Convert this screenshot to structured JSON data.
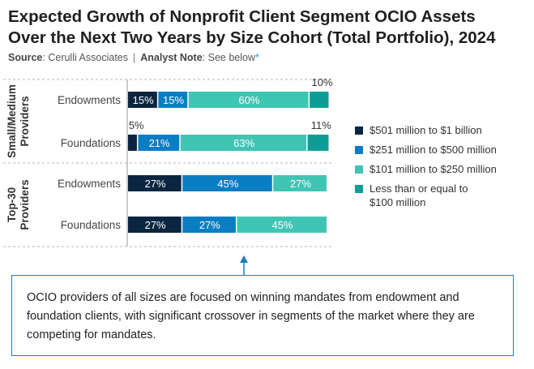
{
  "title_line1": "Expected Growth of Nonprofit Client Segment OCIO Assets",
  "title_line2": "Over the Next Two Years by Size Cohort (Total Portfolio), 2024",
  "source_label": "Source",
  "source_text": ": Cerulli Associates",
  "separator": "|",
  "analyst_label": "Analyst Note",
  "analyst_text": ": See below",
  "asterisk": "*",
  "note_text": "OCIO providers of all sizes are focused on winning mandates from endowment and foundation clients, with significant crossover in segments of the market where they are competing for mandates.",
  "colors": {
    "navy": "#0a2540",
    "blue": "#0a7ec4",
    "light_teal": "#40c4b4",
    "dark_teal": "#0c9e96",
    "frame": "#1a7dc0"
  },
  "chart_data": {
    "type": "bar",
    "orientation": "horizontal",
    "stacked": true,
    "title": "Expected Growth of Nonprofit Client Segment OCIO Assets Over the Next Two Years by Size Cohort (Total Portfolio), 2024",
    "xlim": [
      0,
      100
    ],
    "groups": [
      {
        "name": "Small/Medium Providers",
        "categories": [
          "Endowments",
          "Foundations"
        ]
      },
      {
        "name": "Top-30 Providers",
        "categories": [
          "Endowments",
          "Foundations"
        ]
      }
    ],
    "categories": [
      "Endowments",
      "Foundations",
      "Endowments",
      "Foundations"
    ],
    "series": [
      {
        "name": "$501 million to $1 billion",
        "values": [
          15,
          5,
          27,
          27
        ],
        "labels": [
          "15%",
          "5%",
          "27%",
          "27%"
        ]
      },
      {
        "name": "$251 million to $500 million",
        "values": [
          15,
          21,
          45,
          27
        ],
        "labels": [
          "15%",
          "21%",
          "45%",
          "27%"
        ]
      },
      {
        "name": "$101 million to $250 million",
        "values": [
          60,
          63,
          27,
          45
        ],
        "labels": [
          "60%",
          "63%",
          "27%",
          "45%"
        ]
      },
      {
        "name": "Less than or equal to $100 million",
        "values": [
          10,
          11,
          0,
          0
        ],
        "labels": [
          "10%",
          "11%",
          "",
          ""
        ]
      }
    ],
    "legend": [
      {
        "line1": "$501 million to $1 billion",
        "line2": ""
      },
      {
        "line1": "$251 million to $500 million",
        "line2": ""
      },
      {
        "line1": "$101 million to $250 million",
        "line2": ""
      },
      {
        "line1": "Less than or equal to",
        "line2": "$100 million"
      }
    ]
  }
}
